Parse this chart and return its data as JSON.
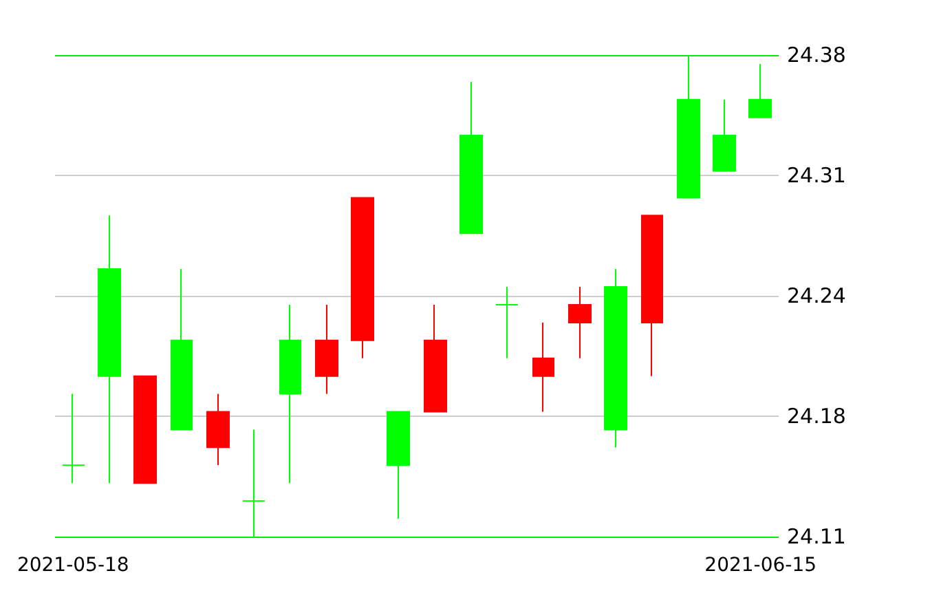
{
  "chart_data": {
    "type": "candlestick",
    "categories": [
      "2021-05-18",
      null,
      null,
      null,
      null,
      null,
      null,
      null,
      null,
      null,
      null,
      null,
      null,
      null,
      null,
      null,
      null,
      null,
      null,
      "2021-06-15"
    ],
    "ohlc": [
      [
        24.15,
        24.19,
        24.14,
        24.15
      ],
      [
        24.2,
        24.29,
        24.14,
        24.26
      ],
      [
        24.2,
        24.2,
        24.14,
        24.14
      ],
      [
        24.17,
        24.26,
        24.17,
        24.22
      ],
      [
        24.18,
        24.19,
        24.15,
        24.16
      ],
      [
        24.13,
        24.17,
        24.11,
        24.13
      ],
      [
        24.19,
        24.24,
        24.14,
        24.22
      ],
      [
        24.22,
        24.24,
        24.19,
        24.2
      ],
      [
        24.3,
        24.3,
        24.21,
        24.22
      ],
      [
        24.15,
        24.18,
        24.12,
        24.18
      ],
      [
        24.22,
        24.24,
        24.18,
        24.18
      ],
      [
        24.28,
        24.365,
        24.28,
        24.335
      ],
      [
        24.24,
        24.25,
        24.21,
        24.24
      ],
      [
        24.21,
        24.23,
        24.18,
        24.2
      ],
      [
        24.24,
        24.25,
        24.21,
        24.23
      ],
      [
        24.17,
        24.26,
        24.16,
        24.25
      ],
      [
        24.29,
        24.29,
        24.2,
        24.23
      ],
      [
        24.3,
        24.38,
        24.3,
        24.355
      ],
      [
        24.315,
        24.355,
        24.315,
        24.335
      ],
      [
        24.345,
        24.375,
        24.345,
        24.355
      ]
    ],
    "colors": [
      "#00ff00",
      "#00ff00",
      "#ff0000",
      "#00ff00",
      "#ff0000",
      "#00ff00",
      "#00ff00",
      "#ff0000",
      "#ff0000",
      "#00ff00",
      "#ff0000",
      "#00ff00",
      "#00ff00",
      "#ff0000",
      "#ff0000",
      "#00ff00",
      "#ff0000",
      "#00ff00",
      "#00ff00",
      "#00ff00"
    ],
    "ylim": [
      24.11,
      24.38
    ],
    "yticks": [
      24.38,
      {
        "value": 24.3125,
        "label": "24.31"
      },
      {
        "value": 24.245,
        "label": "24.24"
      },
      {
        "value": 24.1775,
        "label": "24.18"
      },
      24.11
    ],
    "grid": "y"
  }
}
